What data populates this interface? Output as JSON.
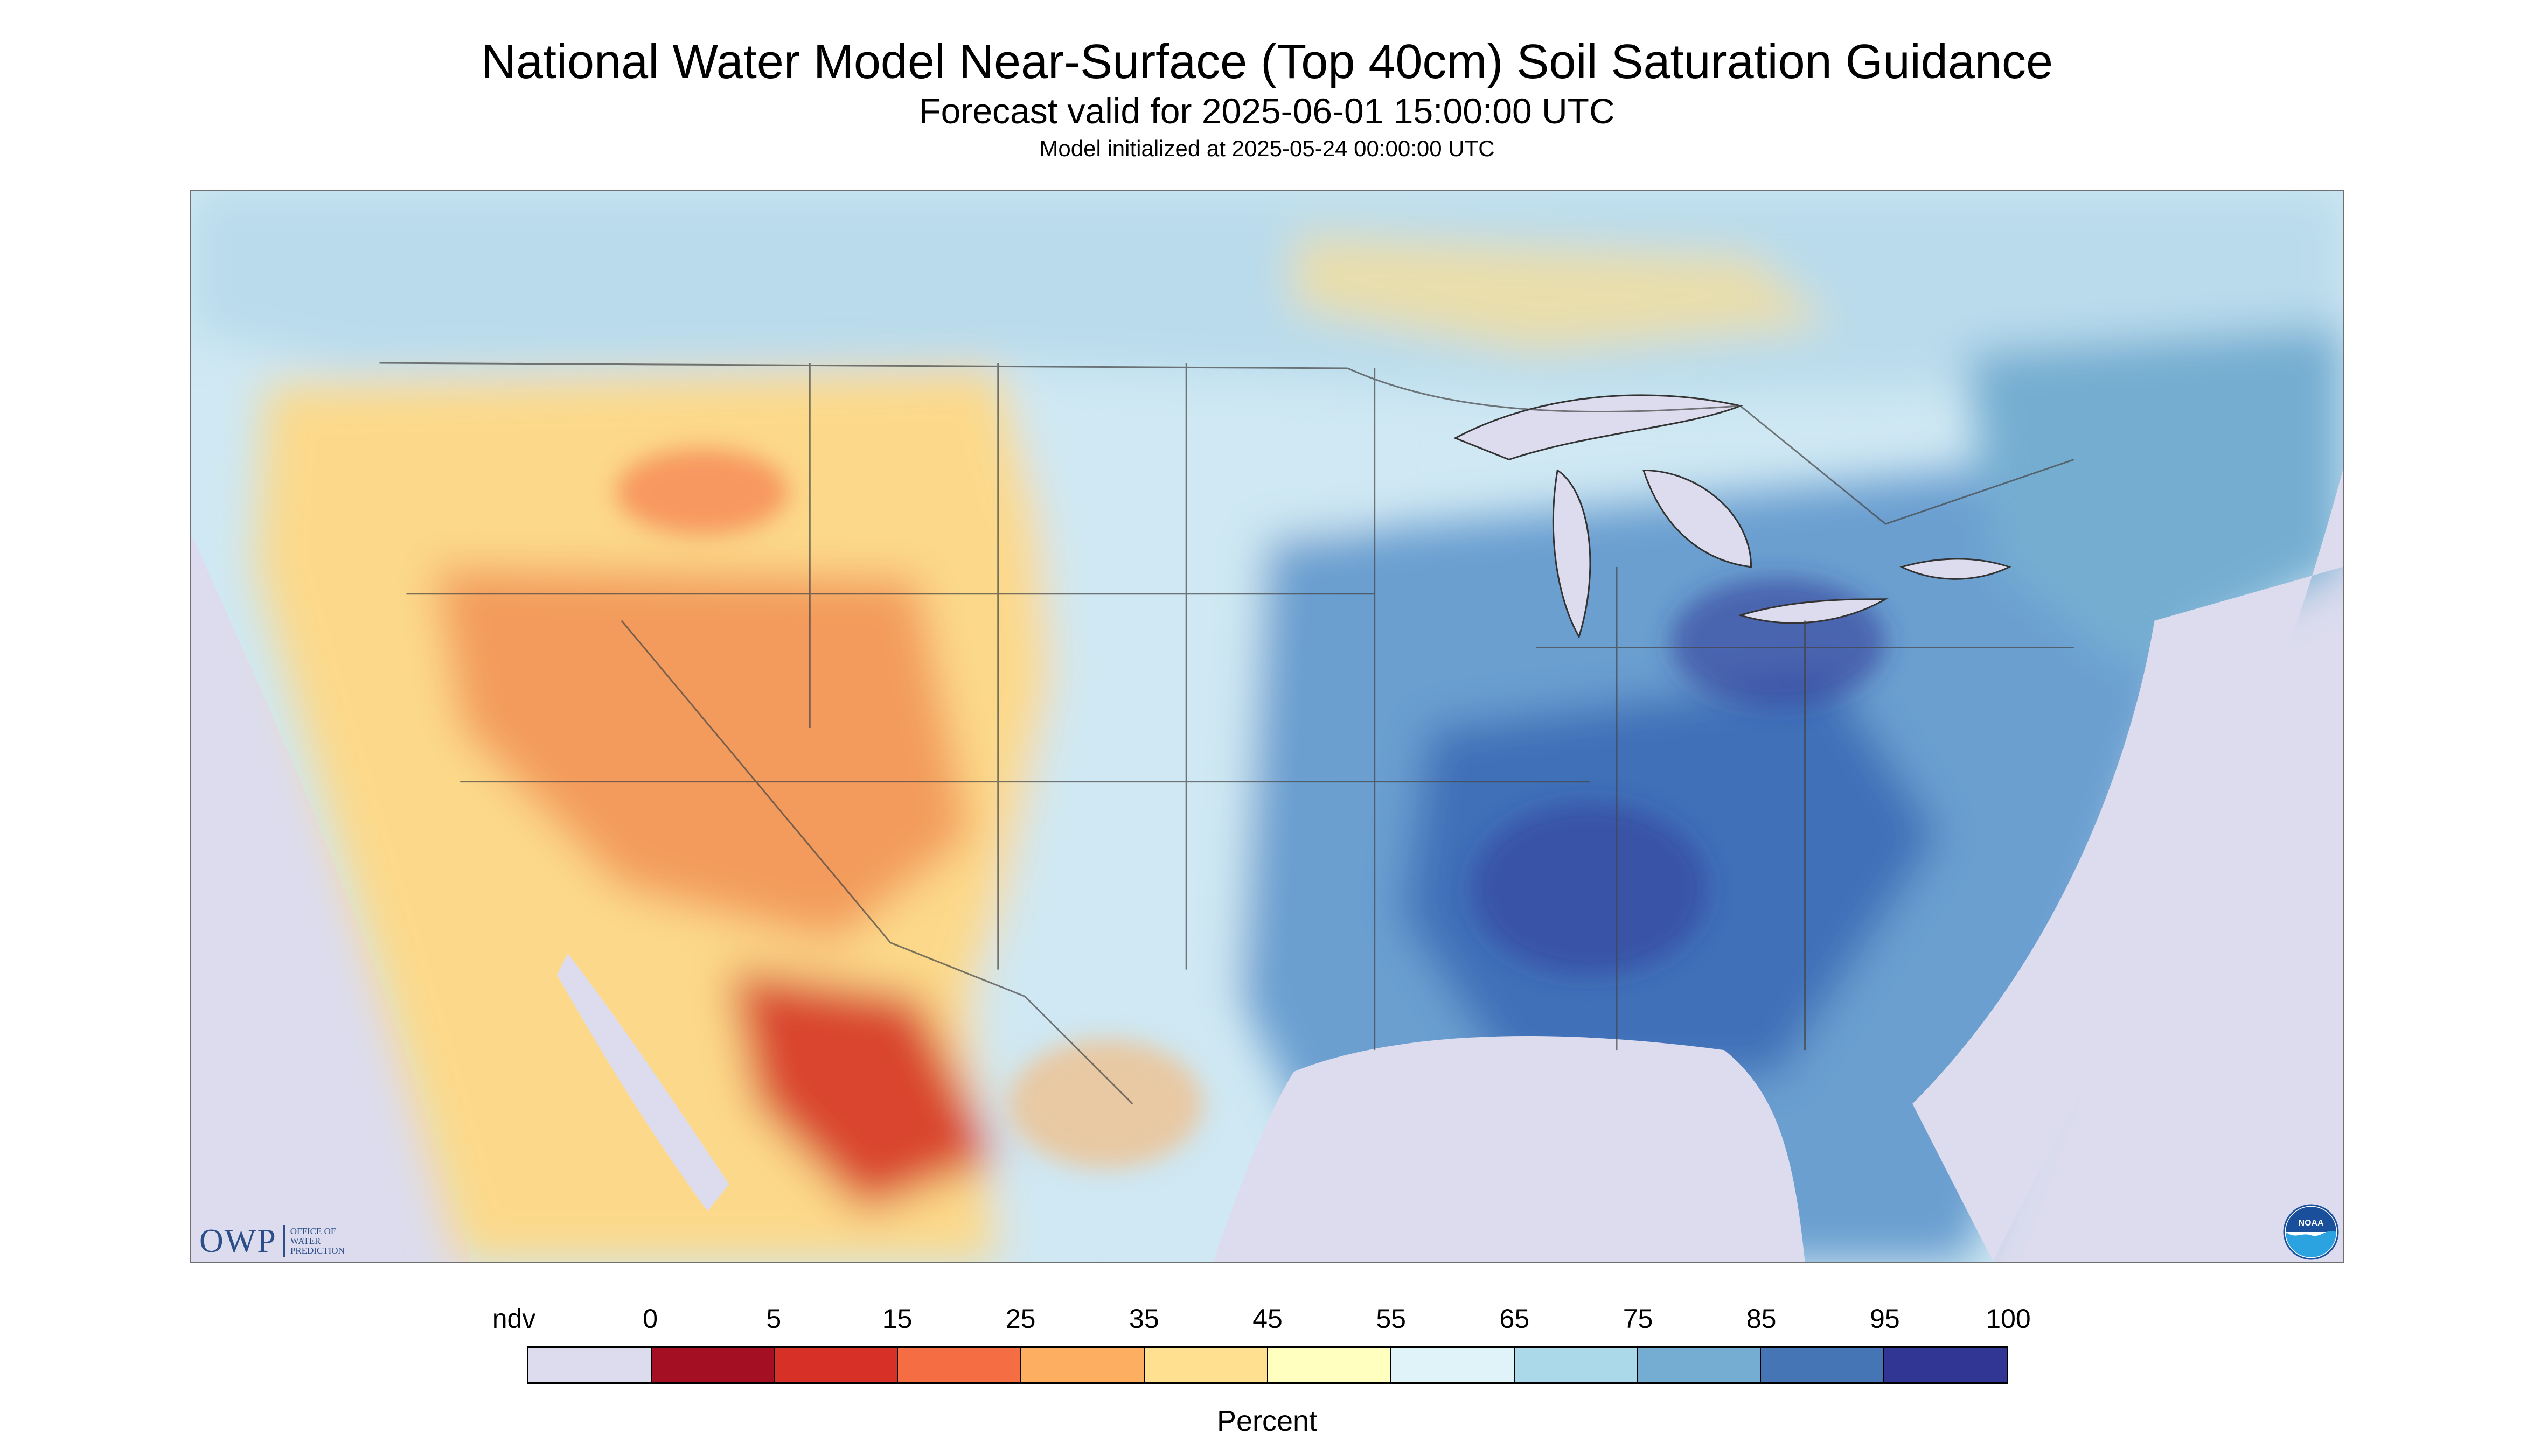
{
  "header": {
    "title": "National Water Model Near-Surface (Top 40cm) Soil Saturation Guidance",
    "subtitle": "Forecast valid for 2025-06-01 15:00:00 UTC",
    "init_line": "Model initialized at 2025-05-24 00:00:00 UTC"
  },
  "map": {
    "background_color": "#dcdcee",
    "region_fills": [
      {
        "region": "west",
        "color": "#fcd98a"
      },
      {
        "region": "southwest-dry",
        "color": "#f39b5c"
      },
      {
        "region": "mexico-dry",
        "color": "#d9452e"
      },
      {
        "region": "plains",
        "color": "#cfe8f3"
      },
      {
        "region": "east-wet",
        "color": "#6a9fd0"
      },
      {
        "region": "southeast-wettest",
        "color": "#3f6fb8"
      },
      {
        "region": "canada",
        "color": "#b9dbec"
      },
      {
        "region": "lakes",
        "color": "#dcdcee"
      }
    ]
  },
  "logos": {
    "owp_mark": "OWP",
    "owp_lines": [
      "Office of",
      "Water",
      "Prediction"
    ],
    "noaa_text": "NOAA"
  },
  "legend": {
    "title": "Percent",
    "labels": [
      "ndv",
      "0",
      "5",
      "15",
      "25",
      "35",
      "45",
      "55",
      "65",
      "75",
      "85",
      "95",
      "100"
    ],
    "colors": [
      "#dcdcee",
      "#a50f24",
      "#d73027",
      "#f46d43",
      "#fdae61",
      "#fee090",
      "#ffffbf",
      "#e0f3f8",
      "#abd9e9",
      "#74add1",
      "#4575b4",
      "#313695"
    ]
  }
}
